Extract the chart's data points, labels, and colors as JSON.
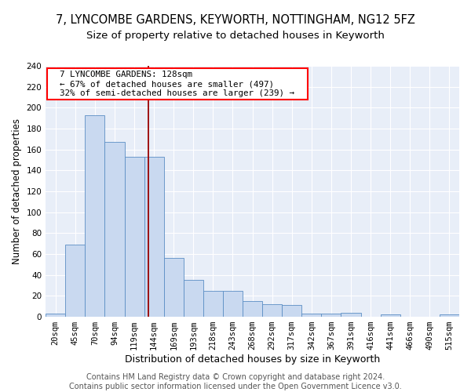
{
  "title1": "7, LYNCOMBE GARDENS, KEYWORTH, NOTTINGHAM, NG12 5FZ",
  "title2": "Size of property relative to detached houses in Keyworth",
  "xlabel": "Distribution of detached houses by size in Keyworth",
  "ylabel": "Number of detached properties",
  "bar_color": "#c9d9f0",
  "bar_edge_color": "#5b8ec4",
  "background_color": "#e8eef8",
  "grid_color": "white",
  "categories": [
    "20sqm",
    "45sqm",
    "70sqm",
    "94sqm",
    "119sqm",
    "144sqm",
    "169sqm",
    "193sqm",
    "218sqm",
    "243sqm",
    "268sqm",
    "292sqm",
    "317sqm",
    "342sqm",
    "367sqm",
    "391sqm",
    "416sqm",
    "441sqm",
    "466sqm",
    "490sqm",
    "515sqm"
  ],
  "values": [
    3,
    69,
    193,
    167,
    153,
    153,
    56,
    35,
    25,
    25,
    15,
    12,
    11,
    3,
    3,
    4,
    0,
    2,
    0,
    0,
    2
  ],
  "vline_x": 4.7,
  "vline_color": "#990000",
  "annotation_text": "  7 LYNCOMBE GARDENS: 128sqm  \n  ← 67% of detached houses are smaller (497)  \n  32% of semi-detached houses are larger (239) →  ",
  "ylim": [
    0,
    240
  ],
  "yticks": [
    0,
    20,
    40,
    60,
    80,
    100,
    120,
    140,
    160,
    180,
    200,
    220,
    240
  ],
  "footer_text": "Contains HM Land Registry data © Crown copyright and database right 2024.\nContains public sector information licensed under the Open Government Licence v3.0.",
  "title1_fontsize": 10.5,
  "title2_fontsize": 9.5,
  "xlabel_fontsize": 9,
  "ylabel_fontsize": 8.5,
  "annotation_fontsize": 7.8,
  "footer_fontsize": 7,
  "tick_fontsize": 7.5
}
